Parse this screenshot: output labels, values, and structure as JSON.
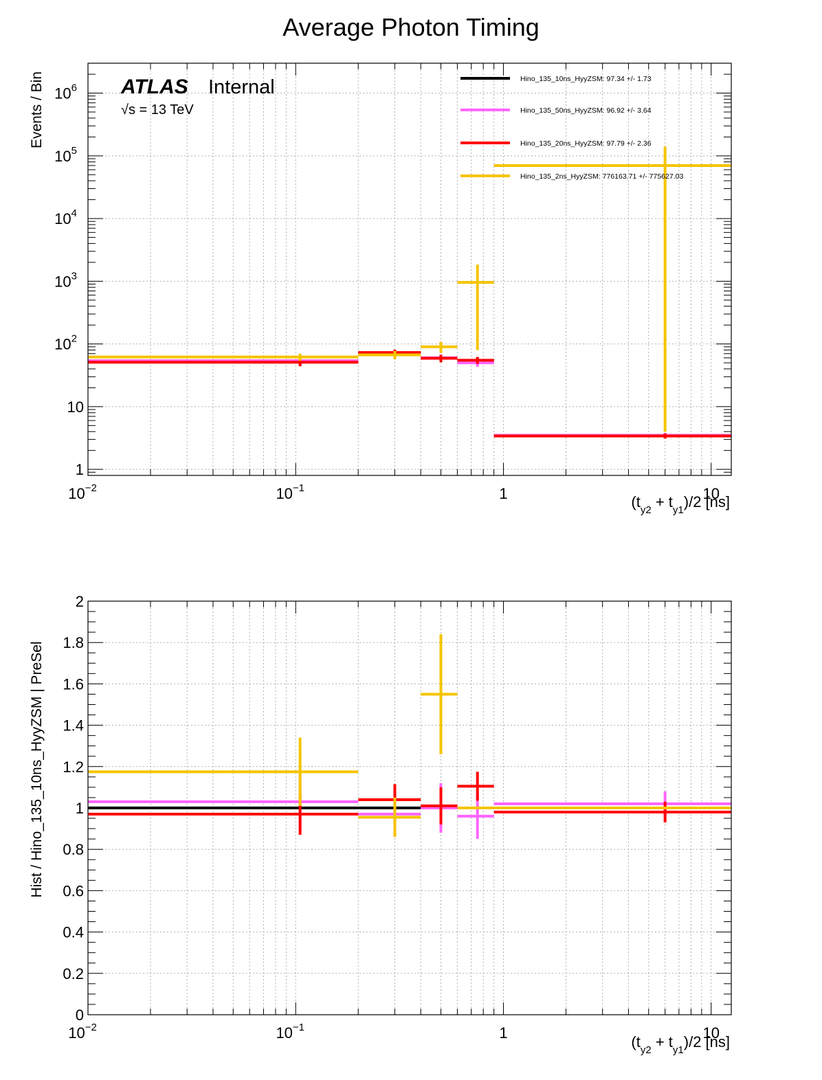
{
  "figure": {
    "title": "Average Photon Timing"
  },
  "atlas_label": {
    "atlas": "ATLAS",
    "status": "Internal",
    "energy_prefix": "√s = 13 TeV"
  },
  "colors": {
    "black": "#000000",
    "magenta": "#ff66ff",
    "red": "#ff0000",
    "yellow": "#f5c400",
    "grid": "#b0b0b0"
  },
  "chart_data": [
    {
      "type": "line",
      "subtype": "histogram-with-errors",
      "panel": "top",
      "title": "Average Photon Timing",
      "xlabel": "(t_y2 + t_y1)/2 [ns]",
      "ylabel": "Events / Bin",
      "xscale": "log",
      "yscale": "log",
      "xlim": [
        0.01,
        12.5
      ],
      "ylim": [
        0.8,
        3000000
      ],
      "xticks": [
        {
          "value": 0.01,
          "label": "10",
          "exp": "−2"
        },
        {
          "value": 0.1,
          "label": "10",
          "exp": "−1"
        },
        {
          "value": 1,
          "label": "1",
          "exp": ""
        },
        {
          "value": 10,
          "label": "10",
          "exp": ""
        }
      ],
      "yticks": [
        {
          "value": 1,
          "label": "1",
          "exp": ""
        },
        {
          "value": 10,
          "label": "10",
          "exp": ""
        },
        {
          "value": 100,
          "label": "10",
          "exp": "2"
        },
        {
          "value": 1000,
          "label": "10",
          "exp": "3"
        },
        {
          "value": 10000,
          "label": "10",
          "exp": "4"
        },
        {
          "value": 100000,
          "label": "10",
          "exp": "5"
        },
        {
          "value": 1000000,
          "label": "10",
          "exp": "6"
        }
      ],
      "grid": true,
      "legend_position": "top-right",
      "bin_edges": [
        0.01,
        0.2,
        0.4,
        0.6,
        0.9,
        12.5
      ],
      "bin_centers": [
        0.105,
        0.3,
        0.5,
        0.75,
        6.0
      ],
      "series": [
        {
          "name": "Hino_135_10ns_HyyZSM: 97.34 +/- 1.73",
          "color": "black",
          "values": [
            52,
            72,
            60,
            54,
            3.5
          ],
          "errors": [
            7,
            8,
            8,
            7,
            0.3
          ]
        },
        {
          "name": "Hino_135_50ns_HyyZSM: 96.92 +/- 3.64",
          "color": "magenta",
          "values": [
            54,
            70,
            60,
            50,
            3.5
          ],
          "errors": [
            7,
            8,
            8,
            7,
            0.3
          ]
        },
        {
          "name": "Hino_135_20ns_HyyZSM: 97.79 +/- 2.36",
          "color": "red",
          "values": [
            51,
            73,
            59,
            55,
            3.4
          ],
          "errors": [
            7,
            8,
            8,
            7,
            0.3
          ]
        },
        {
          "name": "Hino_135_2ns_HyyZSM: 776163.71 +/- 775627.03",
          "color": "yellow",
          "values": [
            62,
            67,
            90,
            960,
            70000
          ],
          "errors": [
            8,
            10,
            18,
            880,
            69996
          ]
        }
      ]
    },
    {
      "type": "line",
      "subtype": "ratio-histogram-with-errors",
      "panel": "bottom",
      "xlabel": "(t_y2 + t_y1)/2 [ns]",
      "ylabel": "Hist / Hino_135_10ns_HyyZSM | PreSel",
      "xscale": "log",
      "yscale": "linear",
      "xlim": [
        0.01,
        12.5
      ],
      "ylim": [
        0,
        2
      ],
      "xticks": [
        {
          "value": 0.01,
          "label": "10",
          "exp": "−2"
        },
        {
          "value": 0.1,
          "label": "10",
          "exp": "−1"
        },
        {
          "value": 1,
          "label": "1",
          "exp": ""
        },
        {
          "value": 10,
          "label": "10",
          "exp": ""
        }
      ],
      "yticks": [
        {
          "value": 0,
          "label": "0"
        },
        {
          "value": 0.2,
          "label": "0.2"
        },
        {
          "value": 0.4,
          "label": "0.4"
        },
        {
          "value": 0.6,
          "label": "0.6"
        },
        {
          "value": 0.8,
          "label": "0.8"
        },
        {
          "value": 1,
          "label": "1"
        },
        {
          "value": 1.2,
          "label": "1.2"
        },
        {
          "value": 1.4,
          "label": "1.4"
        },
        {
          "value": 1.6,
          "label": "1.6"
        },
        {
          "value": 1.8,
          "label": "1.8"
        },
        {
          "value": 2,
          "label": "2"
        }
      ],
      "grid": true,
      "bin_edges": [
        0.01,
        0.2,
        0.4,
        0.6,
        0.9,
        12.5
      ],
      "bin_centers": [
        0.105,
        0.3,
        0.5,
        0.75,
        6.0
      ],
      "series": [
        {
          "name": "Hino_135_10ns_HyyZSM",
          "color": "black",
          "values": [
            1.0,
            1.0,
            1.0,
            1.0,
            1.0
          ],
          "errors": [
            0,
            0,
            0,
            0,
            0
          ]
        },
        {
          "name": "Hino_135_50ns_HyyZSM",
          "color": "magenta",
          "values": [
            1.03,
            0.97,
            1.0,
            0.96,
            1.02
          ],
          "errors": [
            0.14,
            0.11,
            0.12,
            0.11,
            0.06
          ]
        },
        {
          "name": "Hino_135_20ns_HyyZSM",
          "color": "red",
          "values": [
            0.97,
            1.04,
            1.01,
            1.105,
            0.98
          ],
          "errors": [
            0.1,
            0.075,
            0.09,
            0.07,
            0.05
          ]
        },
        {
          "name": "Hino_135_2ns_HyyZSM",
          "color": "yellow",
          "values": [
            1.175,
            0.955,
            1.55,
            1.0,
            1.0
          ],
          "errors": [
            0.165,
            0.095,
            0.29,
            0,
            0
          ]
        }
      ]
    }
  ]
}
